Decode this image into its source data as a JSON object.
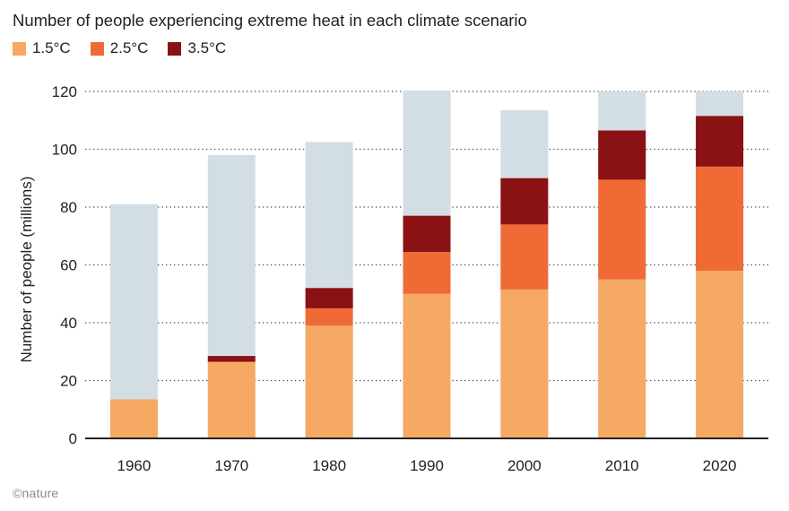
{
  "title": "Number of people experiencing extreme heat in each climate scenario",
  "credit": "©nature",
  "chart_data": {
    "type": "bar",
    "stacked": true,
    "ylabel": "Number of people (millions)",
    "ylim": [
      0,
      120
    ],
    "yticks": [
      0,
      20,
      40,
      60,
      80,
      100,
      120
    ],
    "grid": "horizontal-dotted",
    "legend_position": "top-left",
    "categories": [
      "1960",
      "1970",
      "1980",
      "1990",
      "2000",
      "2010",
      "2020"
    ],
    "series": [
      {
        "name": "1.5°C",
        "color": "#F5A963",
        "values": [
          13.5,
          26.5,
          39,
          50,
          51.5,
          55,
          58
        ]
      },
      {
        "name": "2.5°C",
        "color": "#F06A35",
        "values": [
          0,
          0,
          6,
          14.5,
          22.5,
          34.5,
          36
        ]
      },
      {
        "name": "3.5°C",
        "color": "#8A1214",
        "values": [
          0,
          2,
          7,
          12.5,
          16,
          17,
          17.5
        ]
      }
    ],
    "totals_background": {
      "color": "#D3DDE4",
      "values": [
        81,
        98,
        102.5,
        120.5,
        113.5,
        120,
        120
      ]
    }
  }
}
